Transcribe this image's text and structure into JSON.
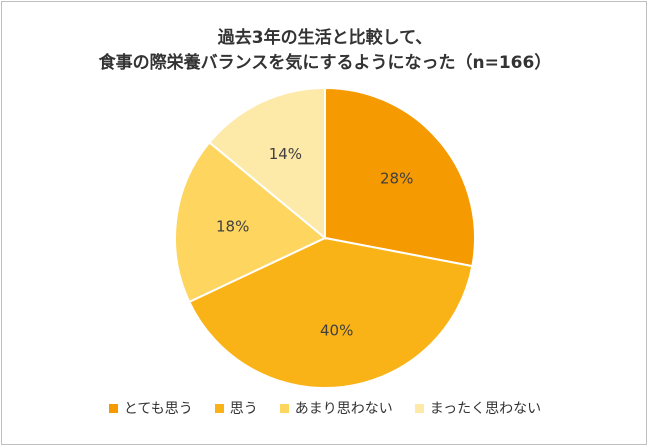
{
  "chart_data": {
    "type": "pie",
    "title_lines": [
      "過去3年の生活と比較して、",
      "食事の際栄養バランスを気にするようになった（n=166）"
    ],
    "categories": [
      "とても思う",
      "思う",
      "あまり思わない",
      "まったく思わない"
    ],
    "values": [
      28,
      40,
      18,
      14
    ],
    "labels": [
      "28%",
      "40%",
      "18%",
      "14%"
    ],
    "colors": [
      "#f59a00",
      "#fab317",
      "#fdd55f",
      "#fde9a8"
    ],
    "legend_position": "bottom",
    "start": "12 o'clock",
    "direction": "clockwise"
  }
}
